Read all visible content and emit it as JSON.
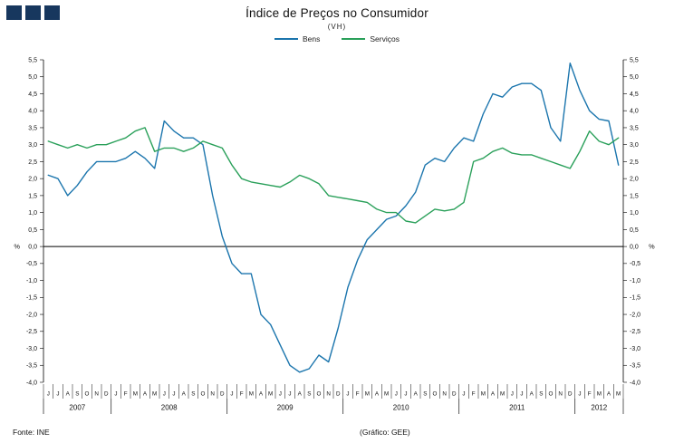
{
  "logo": {
    "color": "#17375e",
    "squares": 3
  },
  "footer": {
    "source": "Fonte: INE",
    "credit": "(Gráfico: GEE)"
  },
  "chart_data": {
    "type": "line",
    "title": "Índice de Preços no Consumidor",
    "subtitle": "(VH)",
    "ylabel": "%",
    "ylim": [
      -4.0,
      5.5
    ],
    "ytick_step": 0.5,
    "grid": false,
    "legend_position": "top",
    "x": [
      "J",
      "J",
      "A",
      "S",
      "O",
      "N",
      "D",
      "J",
      "F",
      "M",
      "A",
      "M",
      "J",
      "J",
      "A",
      "S",
      "O",
      "N",
      "D",
      "J",
      "F",
      "M",
      "A",
      "M",
      "J",
      "J",
      "A",
      "S",
      "O",
      "N",
      "D",
      "J",
      "F",
      "M",
      "A",
      "M",
      "J",
      "J",
      "A",
      "S",
      "O",
      "N",
      "D",
      "J",
      "F",
      "M",
      "A",
      "M",
      "J",
      "J",
      "A",
      "S",
      "O",
      "N",
      "D",
      "J",
      "F",
      "M",
      "A",
      "M"
    ],
    "year_groups": [
      {
        "label": "2007",
        "months": 7
      },
      {
        "label": "2008",
        "months": 12
      },
      {
        "label": "2009",
        "months": 12
      },
      {
        "label": "2010",
        "months": 12
      },
      {
        "label": "2011",
        "months": 12
      },
      {
        "label": "2012",
        "months": 5
      }
    ],
    "series": [
      {
        "name": "Bens",
        "color": "#1b75ad",
        "values": [
          2.1,
          2.0,
          1.5,
          1.8,
          2.2,
          2.5,
          2.5,
          2.5,
          2.6,
          2.8,
          2.6,
          2.3,
          3.7,
          3.4,
          3.2,
          3.2,
          3.0,
          1.5,
          0.3,
          -0.5,
          -0.8,
          -0.8,
          -2.0,
          -2.3,
          -2.9,
          -3.5,
          -3.7,
          -3.6,
          -3.2,
          -3.4,
          -2.4,
          -1.2,
          -0.4,
          0.2,
          0.5,
          0.8,
          0.9,
          1.2,
          1.6,
          2.4,
          2.6,
          2.5,
          2.9,
          3.2,
          3.1,
          3.9,
          4.5,
          4.4,
          4.7,
          4.8,
          4.8,
          4.6,
          3.5,
          3.1,
          5.4,
          4.6,
          4.0,
          3.75,
          3.7,
          2.4
        ]
      },
      {
        "name": "Serviços",
        "color": "#2aa05a",
        "values": [
          3.1,
          3.0,
          2.9,
          3.0,
          2.9,
          3.0,
          3.0,
          3.1,
          3.2,
          3.4,
          3.5,
          2.8,
          2.9,
          2.9,
          2.8,
          2.9,
          3.1,
          3.0,
          2.9,
          2.4,
          2.0,
          1.9,
          1.85,
          1.8,
          1.75,
          1.9,
          2.1,
          2.0,
          1.85,
          1.5,
          1.45,
          1.4,
          1.35,
          1.3,
          1.1,
          1.0,
          1.0,
          0.75,
          0.7,
          0.9,
          1.1,
          1.05,
          1.1,
          1.3,
          2.5,
          2.6,
          2.8,
          2.9,
          2.75,
          2.7,
          2.7,
          2.6,
          2.5,
          2.4,
          2.3,
          2.8,
          3.4,
          3.1,
          3.0,
          3.2
        ]
      }
    ]
  }
}
